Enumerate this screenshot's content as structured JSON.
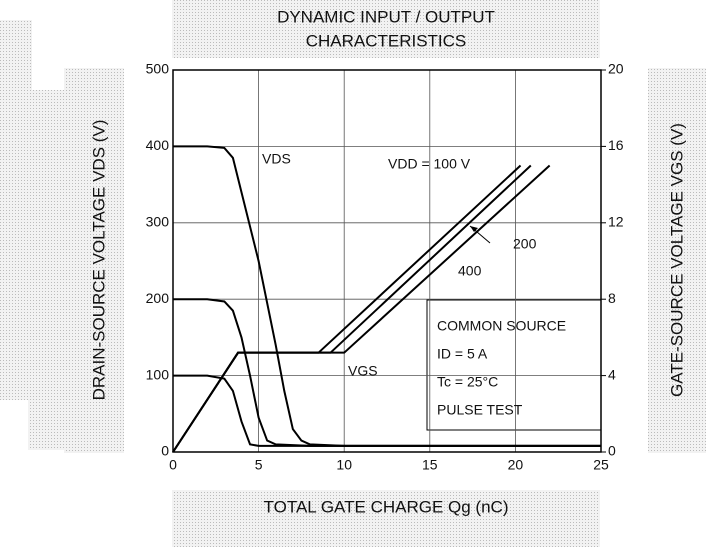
{
  "chart_data": {
    "type": "line",
    "title": [
      "DYNAMIC INPUT / OUTPUT",
      "CHARACTERISTICS"
    ],
    "x_label": "TOTAL GATE CHARGE   Qg   (nC)",
    "y_label": "DRAIN-SOURCE VOLTAGE   VDS   (V)",
    "y2_label": "GATE-SOURCE VOLTAGE   VGS   (V)",
    "xlim": [
      0,
      25
    ],
    "xticks": [
      0,
      5,
      10,
      15,
      20,
      25
    ],
    "ylim": [
      0,
      500
    ],
    "yticks": [
      0,
      100,
      200,
      300,
      400,
      500
    ],
    "y2lim": [
      0,
      20
    ],
    "y2ticks": [
      0,
      4,
      8,
      12,
      16,
      20
    ],
    "grid": true,
    "series": [
      {
        "color": "#000000",
        "x": [
          0,
          2,
          3,
          3.5,
          4,
          5,
          6,
          6.5,
          7,
          7.5,
          8,
          10,
          25
        ],
        "values": [
          400,
          400,
          398,
          385,
          340,
          250,
          140,
          80,
          30,
          15,
          10,
          8,
          8
        ]
      },
      {
        "color": "#000000",
        "x": [
          0,
          2,
          3,
          3.5,
          4,
          4.5,
          5,
          5.5,
          6,
          8,
          25
        ],
        "values": [
          200,
          200,
          197,
          185,
          150,
          100,
          45,
          15,
          10,
          8,
          8
        ]
      },
      {
        "color": "#000000",
        "x": [
          0,
          2,
          3,
          3.5,
          4,
          4.5,
          5,
          25
        ],
        "values": [
          100,
          100,
          96,
          80,
          40,
          10,
          8,
          8
        ]
      },
      {
        "color": "#000000",
        "axis": "y2",
        "x": [
          0,
          3.8,
          8.5,
          20.3
        ],
        "values": [
          0,
          5.2,
          5.2,
          15
        ]
      },
      {
        "color": "#000000",
        "axis": "y2",
        "x": [
          0,
          3.8,
          9.2,
          20.9
        ],
        "values": [
          0,
          5.2,
          5.2,
          15
        ]
      },
      {
        "color": "#000000",
        "axis": "y2",
        "x": [
          0,
          3.8,
          10,
          22
        ],
        "values": [
          0,
          5.2,
          5.2,
          15
        ]
      }
    ],
    "annotations": [
      "VDS",
      "VGS",
      "VDD = 100 V",
      "200",
      "400"
    ],
    "conditions": [
      "COMMON SOURCE",
      "ID = 5 A",
      "Tc = 25°C",
      "PULSE TEST"
    ]
  }
}
